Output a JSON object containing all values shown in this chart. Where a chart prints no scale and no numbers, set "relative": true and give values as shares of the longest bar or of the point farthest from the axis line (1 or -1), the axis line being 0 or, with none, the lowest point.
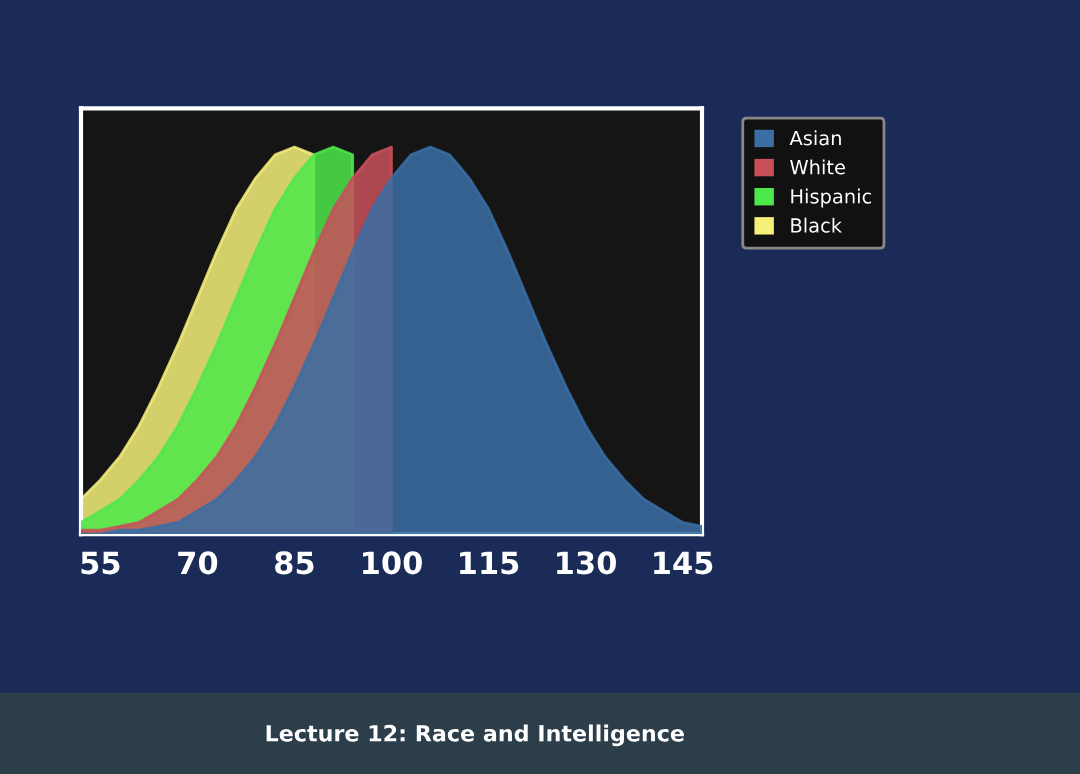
{
  "chart_data": {
    "type": "area",
    "relative": true,
    "x": [
      52,
      55,
      58,
      61,
      64,
      67,
      70,
      73,
      76,
      79,
      82,
      85,
      88,
      91,
      94,
      97,
      100,
      103,
      106,
      109,
      112,
      115,
      118,
      121,
      124,
      127,
      130,
      133,
      136,
      139,
      142,
      145,
      148
    ],
    "xlim": [
      52,
      148
    ],
    "xticks": [
      55,
      70,
      85,
      100,
      115,
      130,
      145
    ],
    "legend": "right",
    "grid": false,
    "annotations": [
      "Lecture 12: Race and Intelligence"
    ],
    "series": [
      {
        "name": "Asian",
        "color": "#3a6ea5",
        "values": [
          0.0,
          0.0,
          0.01,
          0.01,
          0.02,
          0.03,
          0.06,
          0.09,
          0.14,
          0.2,
          0.28,
          0.38,
          0.49,
          0.61,
          0.73,
          0.84,
          0.92,
          0.98,
          1.0,
          0.98,
          0.92,
          0.84,
          0.73,
          0.61,
          0.49,
          0.38,
          0.28,
          0.2,
          0.14,
          0.09,
          0.06,
          0.03,
          0.02
        ]
      },
      {
        "name": "White",
        "color": "#c8505a",
        "values": [
          0.01,
          0.01,
          0.02,
          0.03,
          0.06,
          0.09,
          0.14,
          0.2,
          0.28,
          0.38,
          0.49,
          0.61,
          0.73,
          0.84,
          0.92,
          0.98,
          1.0,
          null,
          null,
          null,
          null,
          null,
          null,
          null,
          null,
          null,
          null,
          null,
          null,
          null,
          null,
          null,
          null
        ]
      },
      {
        "name": "Hispanic",
        "color": "#4de84a",
        "values": [
          0.03,
          0.06,
          0.09,
          0.14,
          0.2,
          0.28,
          0.38,
          0.49,
          0.61,
          0.73,
          0.84,
          0.92,
          0.98,
          1.0,
          0.98,
          null,
          null,
          null,
          null,
          null,
          null,
          null,
          null,
          null,
          null,
          null,
          null,
          null,
          null,
          null,
          null,
          null,
          null
        ]
      },
      {
        "name": "Black",
        "color": "#f4f07a",
        "values": [
          0.09,
          0.14,
          0.2,
          0.28,
          0.38,
          0.49,
          0.61,
          0.73,
          0.84,
          0.92,
          0.98,
          1.0,
          0.98,
          null,
          null,
          null,
          null,
          null,
          null,
          null,
          null,
          null,
          null,
          null,
          null,
          null,
          null,
          null,
          null,
          null,
          null,
          null,
          null
        ]
      }
    ]
  }
}
